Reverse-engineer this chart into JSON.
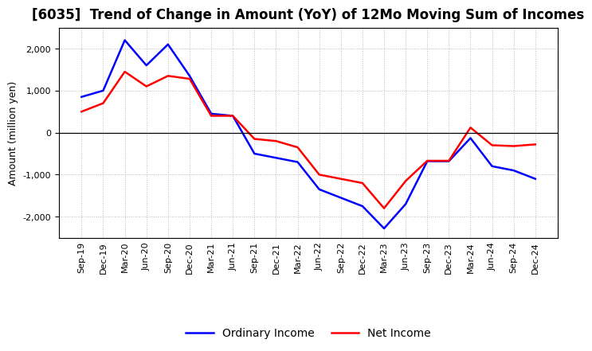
{
  "title": "[6035]  Trend of Change in Amount (YoY) of 12Mo Moving Sum of Incomes",
  "ylabel": "Amount (million yen)",
  "labels": [
    "Sep-19",
    "Dec-19",
    "Mar-20",
    "Jun-20",
    "Sep-20",
    "Dec-20",
    "Mar-21",
    "Jun-21",
    "Sep-21",
    "Dec-21",
    "Mar-22",
    "Jun-22",
    "Sep-22",
    "Dec-22",
    "Mar-23",
    "Jun-23",
    "Sep-23",
    "Dec-23",
    "Mar-24",
    "Jun-24",
    "Sep-24",
    "Dec-24"
  ],
  "ordinary_income": [
    850,
    1000,
    2200,
    1600,
    2100,
    1350,
    450,
    400,
    -500,
    -600,
    -700,
    -1350,
    -1550,
    -1750,
    -2280,
    -1700,
    -680,
    -680,
    -130,
    -800,
    -900,
    -1100
  ],
  "net_income": [
    500,
    700,
    1450,
    1100,
    1350,
    1280,
    400,
    400,
    -150,
    -200,
    -350,
    -1000,
    -1100,
    -1200,
    -1800,
    -1150,
    -670,
    -670,
    120,
    -300,
    -320,
    -280
  ],
  "ordinary_color": "#0000ff",
  "net_color": "#ff0000",
  "ylim": [
    -2500,
    2500
  ],
  "yticks": [
    -2000,
    -1000,
    0,
    1000,
    2000
  ],
  "background_color": "#ffffff",
  "grid_color": "#bbbbbb",
  "title_fontsize": 12,
  "axis_fontsize": 9,
  "tick_fontsize": 8
}
